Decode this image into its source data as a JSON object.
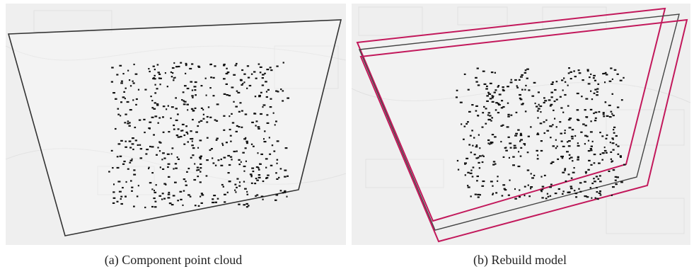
{
  "captions": {
    "a": "(a) Component point cloud",
    "b": "(b) Rebuild model"
  }
}
